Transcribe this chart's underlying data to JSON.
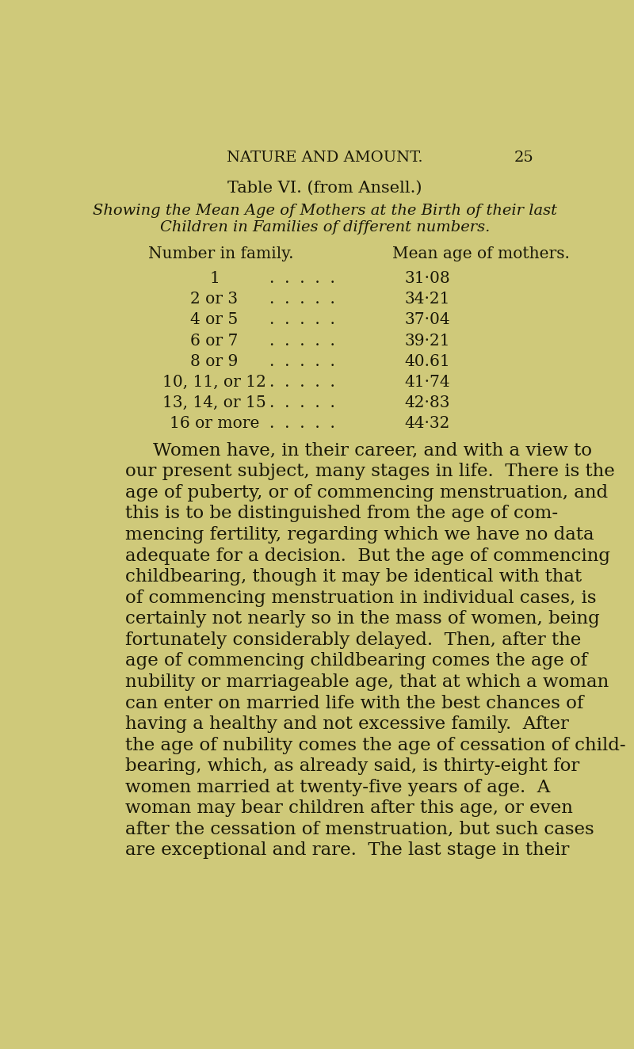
{
  "background_color": "#cfc97a",
  "page_header": "NATURE AND AMOUNT.",
  "page_number": "25",
  "table_title": "Table VI. (from Ansell.)",
  "table_subtitle_line1": "Showing the Mean Age of Mothers at the Birth of their last",
  "table_subtitle_line2": "Children in Families of different numbers.",
  "col_header_left": "Number in family.",
  "col_header_right": "Mean age of mothers.",
  "table_rows": [
    [
      "1",
      "31·08"
    ],
    [
      "2 or 3",
      "34·21"
    ],
    [
      "4 or 5",
      "37·04"
    ],
    [
      "6 or 7",
      "39·21"
    ],
    [
      "8 or 9",
      "40.61"
    ],
    [
      "10, 11, or 12",
      "41·74"
    ],
    [
      "13, 14, or 15",
      "42·83"
    ],
    [
      "16 or more",
      "44·32"
    ]
  ],
  "body_lines": [
    "Women have, in their career, and with a view to",
    "our present subject, many stages in life.  There is the",
    "age of puberty, or of commencing menstruation, and",
    "this is to be distinguished from the age of com-",
    "mencing fertility, regarding which we have no data",
    "adequate for a decision.  But the age of commencing",
    "childbearing, though it may be identical with that",
    "of commencing menstruation in individual cases, is",
    "certainly not nearly so in the mass of women, being",
    "fortunately considerably delayed.  Then, after the",
    "age of commencing childbearing comes the age of",
    "nubility or marriageable age, that at which a woman",
    "can enter on married life with the best chances of",
    "having a healthy and not excessive family.  After",
    "the age of nubility comes the age of cessation of child-",
    "bearing, which, as already said, is thirty-eight for",
    "women married at twenty-five years of age.  A",
    "woman may bear children after this age, or even",
    "after the cessation of menstruation, but such cases",
    "are exceptional and rare.  The last stage in their"
  ],
  "text_color": "#1a1808",
  "header_fontsize": 14,
  "title_fontsize": 15,
  "subtitle_fontsize": 14,
  "table_fontsize": 14.5,
  "body_fontsize": 16.5
}
